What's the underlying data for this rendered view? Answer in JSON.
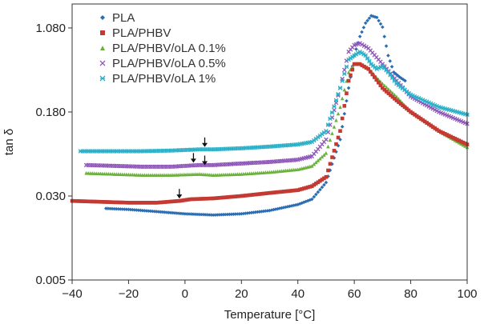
{
  "chart_data": {
    "type": "scatter",
    "xlabel": "Temperature [°C]",
    "ylabel": "tan δ",
    "xlim": [
      -40,
      100
    ],
    "ylim": [
      0.005,
      1.8
    ],
    "y_scale": "log",
    "x_ticks": [
      "−40",
      "−20",
      "0",
      "20",
      "40",
      "60",
      "80",
      "100"
    ],
    "x_tick_values": [
      -40,
      -20,
      0,
      20,
      40,
      60,
      80,
      100
    ],
    "y_ticks": [
      "0.005",
      "0.030",
      "0.180",
      "1.080"
    ],
    "y_tick_values": [
      0.005,
      0.03,
      0.18,
      1.08
    ],
    "legend_position": "top-left",
    "grid": false,
    "series": [
      {
        "name": "PLA",
        "color": "#2a6db3",
        "marker": "diamond",
        "points": [
          [
            -28,
            0.023
          ],
          [
            -20,
            0.0225
          ],
          [
            -10,
            0.0215
          ],
          [
            0,
            0.0205
          ],
          [
            10,
            0.02
          ],
          [
            20,
            0.0205
          ],
          [
            30,
            0.022
          ],
          [
            40,
            0.025
          ],
          [
            45,
            0.028
          ],
          [
            50,
            0.04
          ],
          [
            55,
            0.1
          ],
          [
            58,
            0.3
          ],
          [
            60,
            0.6
          ],
          [
            62,
            0.9
          ],
          [
            64,
            1.2
          ],
          [
            66,
            1.4
          ],
          [
            68,
            1.35
          ],
          [
            70,
            1.1
          ],
          [
            72,
            0.6
          ],
          [
            74,
            0.42
          ],
          [
            76,
            0.38
          ],
          [
            78,
            0.35
          ]
        ]
      },
      {
        "name": "PLA/PHBV",
        "color": "#c43a32",
        "marker": "square",
        "points": [
          [
            -40,
            0.027
          ],
          [
            -30,
            0.0265
          ],
          [
            -20,
            0.026
          ],
          [
            -10,
            0.026
          ],
          [
            -2,
            0.027
          ],
          [
            2,
            0.028
          ],
          [
            10,
            0.0285
          ],
          [
            20,
            0.03
          ],
          [
            30,
            0.032
          ],
          [
            40,
            0.034
          ],
          [
            45,
            0.037
          ],
          [
            50,
            0.045
          ],
          [
            55,
            0.12
          ],
          [
            58,
            0.35
          ],
          [
            60,
            0.5
          ],
          [
            62,
            0.5
          ],
          [
            65,
            0.45
          ],
          [
            70,
            0.3
          ],
          [
            75,
            0.23
          ],
          [
            80,
            0.18
          ],
          [
            90,
            0.12
          ],
          [
            100,
            0.09
          ]
        ]
      },
      {
        "name": "PLA/PHBV/oLA 0.1%",
        "color": "#6ab13c",
        "marker": "triangle",
        "points": [
          [
            -35,
            0.049
          ],
          [
            -25,
            0.048
          ],
          [
            -15,
            0.047
          ],
          [
            -5,
            0.047
          ],
          [
            5,
            0.048
          ],
          [
            10,
            0.047
          ],
          [
            20,
            0.048
          ],
          [
            30,
            0.05
          ],
          [
            40,
            0.053
          ],
          [
            45,
            0.057
          ],
          [
            50,
            0.075
          ],
          [
            55,
            0.2
          ],
          [
            58,
            0.42
          ],
          [
            60,
            0.5
          ],
          [
            62,
            0.5
          ],
          [
            65,
            0.45
          ],
          [
            70,
            0.33
          ],
          [
            75,
            0.25
          ],
          [
            80,
            0.18
          ],
          [
            90,
            0.12
          ],
          [
            100,
            0.085
          ]
        ]
      },
      {
        "name": "PLA/PHBV/oLA 0.5%",
        "color": "#8e56b8",
        "marker": "cross",
        "points": [
          [
            -35,
            0.058
          ],
          [
            -25,
            0.057
          ],
          [
            -15,
            0.056
          ],
          [
            -5,
            0.056
          ],
          [
            5,
            0.058
          ],
          [
            10,
            0.058
          ],
          [
            20,
            0.06
          ],
          [
            30,
            0.062
          ],
          [
            40,
            0.065
          ],
          [
            45,
            0.07
          ],
          [
            50,
            0.1
          ],
          [
            55,
            0.3
          ],
          [
            58,
            0.65
          ],
          [
            60,
            0.75
          ],
          [
            62,
            0.78
          ],
          [
            65,
            0.7
          ],
          [
            70,
            0.5
          ],
          [
            75,
            0.35
          ],
          [
            80,
            0.25
          ],
          [
            90,
            0.18
          ],
          [
            100,
            0.14
          ]
        ]
      },
      {
        "name": "PLA/PHBV/oLA 1%",
        "color": "#2bb0c8",
        "marker": "star",
        "points": [
          [
            -37,
            0.078
          ],
          [
            -25,
            0.078
          ],
          [
            -15,
            0.078
          ],
          [
            -5,
            0.079
          ],
          [
            5,
            0.081
          ],
          [
            10,
            0.081
          ],
          [
            20,
            0.083
          ],
          [
            30,
            0.086
          ],
          [
            40,
            0.09
          ],
          [
            45,
            0.095
          ],
          [
            50,
            0.12
          ],
          [
            55,
            0.3
          ],
          [
            58,
            0.55
          ],
          [
            60,
            0.6
          ],
          [
            62,
            0.65
          ],
          [
            64,
            0.6
          ],
          [
            66,
            0.5
          ],
          [
            68,
            0.45
          ],
          [
            70,
            0.48
          ],
          [
            72,
            0.42
          ],
          [
            75,
            0.33
          ],
          [
            80,
            0.26
          ],
          [
            90,
            0.2
          ],
          [
            100,
            0.17
          ]
        ]
      }
    ],
    "annotations": [
      {
        "type": "arrow",
        "x": -2,
        "y": 0.027
      },
      {
        "type": "arrow",
        "x": 3,
        "y": 0.058
      },
      {
        "type": "arrow",
        "x": 7,
        "y": 0.055
      },
      {
        "type": "arrow",
        "x": 7,
        "y": 0.081
      }
    ]
  }
}
